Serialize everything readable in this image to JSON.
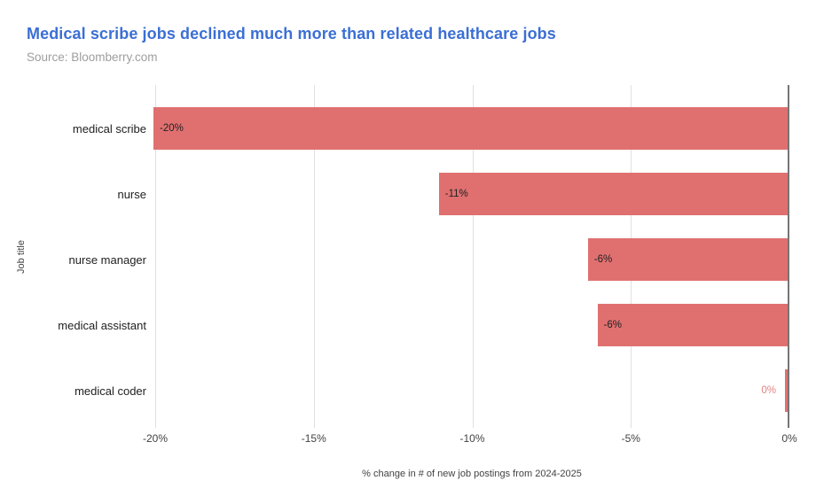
{
  "title": "Medical scribe jobs declined much more than related healthcare jobs",
  "source": "Source: Bloomberry.com",
  "colors": {
    "title_blue": "#3B6FD4",
    "source_gray": "#9E9E9E",
    "bar_red": "#E07070",
    "gridline_gray": "#E0E0E0",
    "zero_axis_gray": "#757575",
    "bar_label_dark": "#212121",
    "outside_label_red": "#E58080"
  },
  "chart_data": {
    "type": "bar",
    "orientation": "horizontal",
    "title": "Medical scribe jobs declined much more than related healthcare jobs",
    "subtitle": "Source: Bloomberry.com",
    "categories": [
      "medical scribe",
      "nurse",
      "nurse manager",
      "medical assistant",
      "medical coder"
    ],
    "values": [
      -20,
      -11,
      -6.3,
      -6,
      0
    ],
    "value_labels": [
      "-20%",
      "-11%",
      "-6%",
      "-6%",
      "0%"
    ],
    "xlabel": "% change in # of new job postings from 2024-2025",
    "ylabel": "Job title",
    "xlim": [
      -20,
      0
    ],
    "xticks": [
      -20,
      -15,
      -10,
      -5,
      0
    ],
    "xtick_labels": [
      "-20%",
      "-15%",
      "-10%",
      "-5%",
      "0%"
    ],
    "grid": true,
    "legend": false
  }
}
